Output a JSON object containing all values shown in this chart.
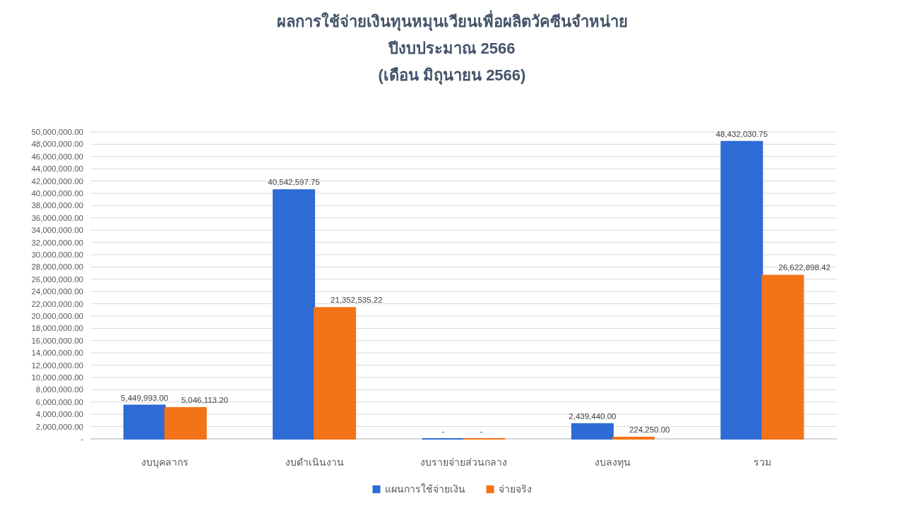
{
  "chart_data": {
    "type": "bar",
    "title": "ผลการใช้จ่ายเงินทุนหมุนเวียนเพื่อผลิตวัคซีนจำหน่าย",
    "subtitle": "ปีงบประมาณ 2566\n(เดือน มิถุนายน 2566)",
    "categories": [
      "งบบุคลากร",
      "งบดำเนินงาน",
      "งบรายจ่ายส่วนกลาง",
      "งบลงทุน",
      "รวม"
    ],
    "series": [
      {
        "name": "แผนการใช้จ่ายเงิน",
        "color": "#2e6bd4",
        "values": [
          5449993.0,
          40542597.75,
          0,
          2439440.0,
          48432030.75
        ],
        "value_labels": [
          "5,449,993.00",
          "40,542,597.75",
          "-",
          "2,439,440.00",
          "48,432,030.75"
        ]
      },
      {
        "name": "จ่ายจริง",
        "color": "#f27318",
        "values": [
          5046113.2,
          21352535.22,
          0,
          224250.0,
          26622898.42
        ],
        "value_labels": [
          "5,046,113.20",
          "21,352,535.22",
          "-",
          "224,250.00",
          "26,622,898.42"
        ]
      }
    ],
    "ylim": [
      0,
      50000000
    ],
    "yticks": [
      {
        "value": 0,
        "label": "-"
      },
      {
        "value": 2000000,
        "label": "2,000,000.00"
      },
      {
        "value": 4000000,
        "label": "4,000,000.00"
      },
      {
        "value": 6000000,
        "label": "6,000,000.00"
      },
      {
        "value": 8000000,
        "label": "8,000,000.00"
      },
      {
        "value": 10000000,
        "label": "10,000,000.00"
      },
      {
        "value": 12000000,
        "label": "12,000,000.00"
      },
      {
        "value": 14000000,
        "label": "14,000,000.00"
      },
      {
        "value": 16000000,
        "label": "16,000,000.00"
      },
      {
        "value": 18000000,
        "label": "18,000,000.00"
      },
      {
        "value": 20000000,
        "label": "20,000,000.00"
      },
      {
        "value": 22000000,
        "label": "22,000,000.00"
      },
      {
        "value": 24000000,
        "label": "24,000,000.00"
      },
      {
        "value": 26000000,
        "label": "26,000,000.00"
      },
      {
        "value": 28000000,
        "label": "28,000,000.00"
      },
      {
        "value": 30000000,
        "label": "30,000,000.00"
      },
      {
        "value": 32000000,
        "label": "32,000,000.00"
      },
      {
        "value": 34000000,
        "label": "34,000,000.00"
      },
      {
        "value": 36000000,
        "label": "36,000,000.00"
      },
      {
        "value": 38000000,
        "label": "38,000,000.00"
      },
      {
        "value": 40000000,
        "label": "40,000,000.00"
      },
      {
        "value": 42000000,
        "label": "42,000,000.00"
      },
      {
        "value": 44000000,
        "label": "44,000,000.00"
      },
      {
        "value": 46000000,
        "label": "46,000,000.00"
      },
      {
        "value": 48000000,
        "label": "48,000,000.00"
      },
      {
        "value": 50000000,
        "label": "50,000,000.00"
      }
    ],
    "grid": "y",
    "legend": "bottom"
  }
}
